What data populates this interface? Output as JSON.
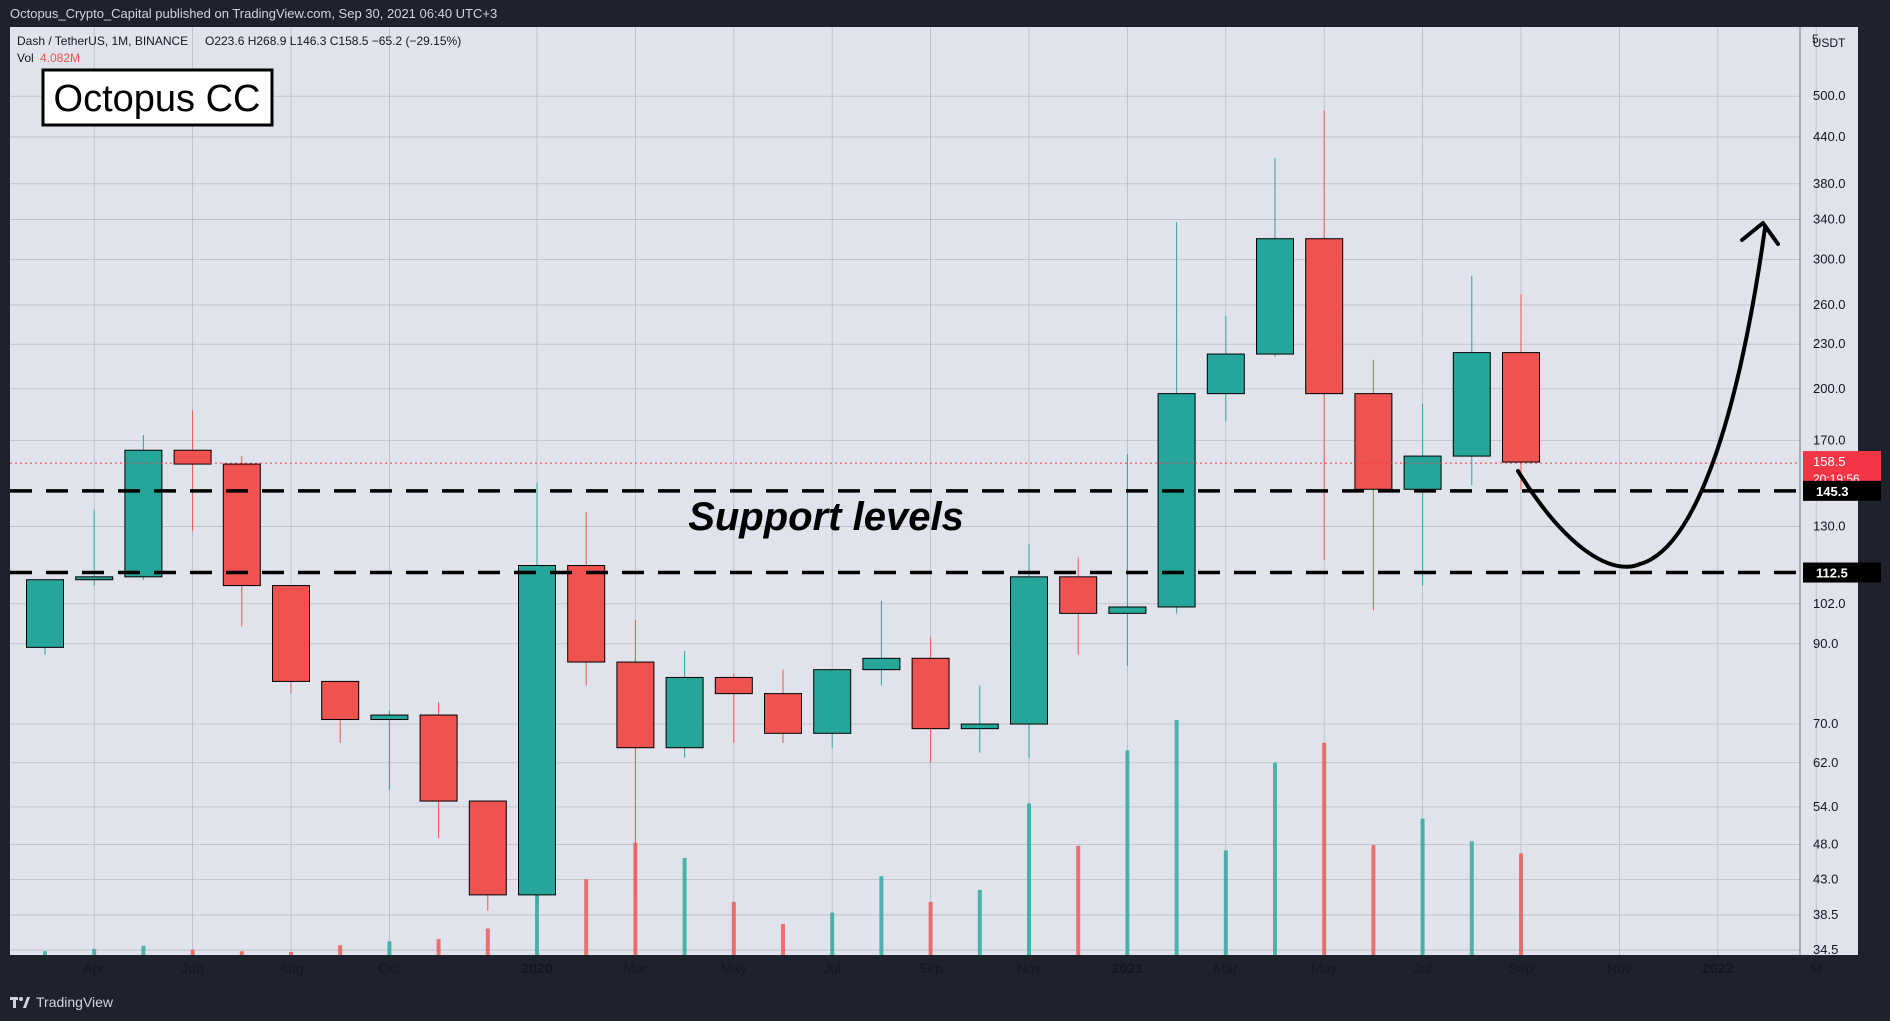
{
  "header": {
    "published": "Octopus_Crypto_Capital published on TradingView.com, Sep 30, 2021 06:40 UTC+3"
  },
  "footer": {
    "brand": "TradingView"
  },
  "chart_data": {
    "type": "candlestick",
    "symbol_line": "Dash / TetherUS, 1M, BINANCE",
    "ohlc_line": "O223.6  H268.9  L146.3  C158.5  −65.2 (−29.15%)",
    "vol_label": "Vol",
    "vol_value": "4.082M",
    "watermark": "Octopus CC",
    "annotation": "Support levels",
    "currency": "USDT",
    "axis_top_label": "5",
    "y_scale": "log",
    "y_range": [
      34.5,
      560
    ],
    "y_ticks": [
      "500.0",
      "440.0",
      "380.0",
      "340.0",
      "300.0",
      "260.0",
      "230.0",
      "200.0",
      "170.0",
      "130.0",
      "102.0",
      "90.0",
      "70.0",
      "62.0",
      "54.0",
      "48.0",
      "43.0",
      "38.5",
      "34.5"
    ],
    "x_labels": [
      {
        "i": 1,
        "text": "Apr",
        "bold": false
      },
      {
        "i": 3,
        "text": "Jun",
        "bold": false
      },
      {
        "i": 5,
        "text": "Aug",
        "bold": false
      },
      {
        "i": 7,
        "text": "Oct",
        "bold": false
      },
      {
        "i": 10,
        "text": "2020",
        "bold": true
      },
      {
        "i": 12,
        "text": "Mar",
        "bold": false
      },
      {
        "i": 14,
        "text": "May",
        "bold": false
      },
      {
        "i": 16,
        "text": "Jul",
        "bold": false
      },
      {
        "i": 18,
        "text": "Sep",
        "bold": false
      },
      {
        "i": 20,
        "text": "Nov",
        "bold": false
      },
      {
        "i": 22,
        "text": "2021",
        "bold": true
      },
      {
        "i": 24,
        "text": "Mar",
        "bold": false
      },
      {
        "i": 26,
        "text": "May",
        "bold": false
      },
      {
        "i": 28,
        "text": "Jul",
        "bold": false
      },
      {
        "i": 30,
        "text": "Sep",
        "bold": false
      },
      {
        "i": 32,
        "text": "Nov",
        "bold": false
      },
      {
        "i": 34,
        "text": "2022",
        "bold": true
      },
      {
        "i": 36,
        "text": "M",
        "bold": false
      }
    ],
    "candles": [
      {
        "o": 89,
        "h": 110,
        "l": 87,
        "c": 110
      },
      {
        "o": 110,
        "h": 137,
        "l": 108,
        "c": 111
      },
      {
        "o": 111,
        "h": 173,
        "l": 110,
        "c": 165
      },
      {
        "o": 165,
        "h": 187,
        "l": 128,
        "c": 158
      },
      {
        "o": 158,
        "h": 162,
        "l": 95,
        "c": 108
      },
      {
        "o": 108,
        "h": 108,
        "l": 77,
        "c": 80
      },
      {
        "o": 80,
        "h": 80,
        "l": 66,
        "c": 71
      },
      {
        "o": 71,
        "h": 73,
        "l": 57,
        "c": 72
      },
      {
        "o": 72,
        "h": 75,
        "l": 49,
        "c": 55
      },
      {
        "o": 55,
        "h": 55,
        "l": 39,
        "c": 41
      },
      {
        "o": 41,
        "h": 149,
        "l": 40,
        "c": 115
      },
      {
        "o": 115,
        "h": 136,
        "l": 79,
        "c": 85
      },
      {
        "o": 85,
        "h": 97,
        "l": 41,
        "c": 65
      },
      {
        "o": 65,
        "h": 88,
        "l": 63,
        "c": 81
      },
      {
        "o": 81,
        "h": 82,
        "l": 66,
        "c": 77
      },
      {
        "o": 77,
        "h": 83,
        "l": 66,
        "c": 68
      },
      {
        "o": 68,
        "h": 82,
        "l": 65,
        "c": 83
      },
      {
        "o": 83,
        "h": 103,
        "l": 79,
        "c": 86
      },
      {
        "o": 86,
        "h": 92,
        "l": 62,
        "c": 69
      },
      {
        "o": 69,
        "h": 79,
        "l": 64,
        "c": 70
      },
      {
        "o": 70,
        "h": 123,
        "l": 63,
        "c": 111
      },
      {
        "o": 111,
        "h": 118,
        "l": 87,
        "c": 99
      },
      {
        "o": 99,
        "h": 163,
        "l": 84,
        "c": 101
      },
      {
        "o": 101,
        "h": 337,
        "l": 99,
        "c": 197
      },
      {
        "o": 197,
        "h": 251,
        "l": 181,
        "c": 223
      },
      {
        "o": 223,
        "h": 412,
        "l": 221,
        "c": 320
      },
      {
        "o": 320,
        "h": 478,
        "l": 117,
        "c": 197
      },
      {
        "o": 197,
        "h": 219,
        "l": 100,
        "c": 146
      },
      {
        "o": 146,
        "h": 191,
        "l": 108,
        "c": 162
      },
      {
        "o": 162,
        "h": 285,
        "l": 148,
        "c": 224
      },
      {
        "o": 224,
        "h": 269,
        "l": 146,
        "c": 159
      }
    ],
    "volumes": [
      0.5,
      0.8,
      1.2,
      0.7,
      0.5,
      0.4,
      1.3,
      1.8,
      2.1,
      3.5,
      13.5,
      10.0,
      14.8,
      12.8,
      7.0,
      4.1,
      5.6,
      10.4,
      7.0,
      8.6,
      20.0,
      14.4,
      27.0,
      31.0,
      13.8,
      25.4,
      28.0,
      14.5,
      18.0,
      15.0,
      13.4
    ],
    "volume_max": 31.0,
    "current_price": {
      "value": 158.5,
      "label": "158.5",
      "countdown": "20:19:56"
    },
    "support_levels": [
      {
        "value": 145.3,
        "label": "145.3"
      },
      {
        "value": 112.5,
        "label": "112.5"
      }
    ],
    "colors": {
      "up": "#26a69a",
      "down": "#ef5350",
      "bg": "#e0e3eb",
      "grid": "#b2b5be",
      "frame": "#1e222d",
      "axis_text": "#131722",
      "price_line": "#f23645"
    }
  }
}
